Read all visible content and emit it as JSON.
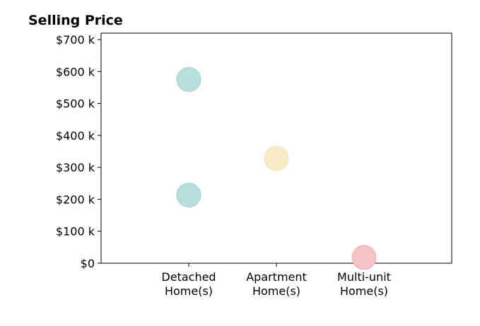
{
  "chart_data": {
    "type": "scatter",
    "title": "Selling Price",
    "xlabel": "",
    "ylabel": "",
    "categories": [
      [
        "Detached",
        "Home(s)"
      ],
      [
        "Apartment",
        "Home(s)"
      ],
      [
        "Multi-unit",
        "Home(s)"
      ]
    ],
    "y_ticks": [
      {
        "value": 0,
        "label": "$0"
      },
      {
        "value": 100,
        "label": "$100 k"
      },
      {
        "value": 200,
        "label": "$200 k"
      },
      {
        "value": 300,
        "label": "$300 k"
      },
      {
        "value": 400,
        "label": "$400 k"
      },
      {
        "value": 500,
        "label": "$500 k"
      },
      {
        "value": 600,
        "label": "$600 k"
      },
      {
        "value": 700,
        "label": "$700 k"
      }
    ],
    "ylim": [
      0,
      720
    ],
    "xlim": [
      0,
      4
    ],
    "grid": false,
    "points": [
      {
        "category": 0,
        "value": 575,
        "color": "#b7e0dc"
      },
      {
        "category": 0,
        "value": 213,
        "color": "#b7e0dc"
      },
      {
        "category": 1,
        "value": 328,
        "color": "#faebc6"
      },
      {
        "category": 2,
        "value": 18,
        "color": "#f7c2c6"
      }
    ],
    "stroke_colors": [
      "#9fd2cc",
      "#f3dfa9",
      "#f0aab0"
    ]
  }
}
